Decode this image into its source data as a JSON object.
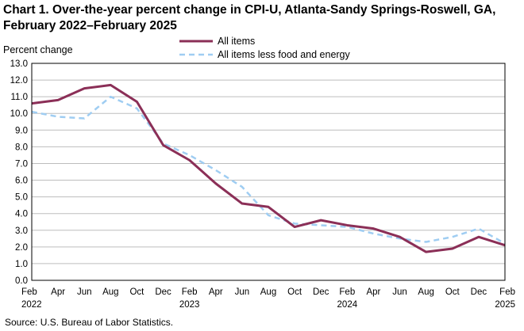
{
  "chart_data": {
    "type": "line",
    "title": "Chart 1. Over-the-year percent change in CPI-U, Atlanta-Sandy Springs-Roswell, GA, February 2022–February 2025",
    "ylabel": "Percent change",
    "xlabel": "",
    "ylim": [
      0,
      13
    ],
    "yticks": [
      "0.0",
      "1.0",
      "2.0",
      "3.0",
      "4.0",
      "5.0",
      "6.0",
      "7.0",
      "8.0",
      "9.0",
      "10.0",
      "11.0",
      "12.0",
      "13.0"
    ],
    "x_ticks": [
      {
        "month": "Feb",
        "year": "2022"
      },
      {
        "month": "Apr",
        "year": ""
      },
      {
        "month": "Jun",
        "year": ""
      },
      {
        "month": "Aug",
        "year": ""
      },
      {
        "month": "Oct",
        "year": ""
      },
      {
        "month": "Dec",
        "year": ""
      },
      {
        "month": "Feb",
        "year": "2023"
      },
      {
        "month": "Apr",
        "year": ""
      },
      {
        "month": "Jun",
        "year": ""
      },
      {
        "month": "Aug",
        "year": ""
      },
      {
        "month": "Oct",
        "year": ""
      },
      {
        "month": "Dec",
        "year": ""
      },
      {
        "month": "Feb",
        "year": "2024"
      },
      {
        "month": "Apr",
        "year": ""
      },
      {
        "month": "Jun",
        "year": ""
      },
      {
        "month": "Aug",
        "year": ""
      },
      {
        "month": "Oct",
        "year": ""
      },
      {
        "month": "Dec",
        "year": ""
      },
      {
        "month": "Feb",
        "year": "2025"
      }
    ],
    "series": [
      {
        "name": "All items",
        "color": "#8b2f57",
        "style": "solid",
        "values": [
          10.6,
          10.8,
          11.5,
          11.7,
          10.7,
          8.1,
          7.2,
          5.8,
          4.6,
          4.4,
          3.2,
          3.6,
          3.3,
          3.1,
          2.6,
          1.7,
          1.9,
          2.6,
          2.1
        ]
      },
      {
        "name": "All items less food and energy",
        "color": "#9fcdf2",
        "style": "dashed",
        "values": [
          10.1,
          9.8,
          9.7,
          11.0,
          10.3,
          8.2,
          7.5,
          6.6,
          5.6,
          3.9,
          3.4,
          3.3,
          3.2,
          2.8,
          2.5,
          2.3,
          2.6,
          3.1,
          2.2
        ]
      }
    ],
    "legend": "top-center",
    "grid": true
  },
  "source": "Source:  U.S. Bureau  of Labor Statistics."
}
